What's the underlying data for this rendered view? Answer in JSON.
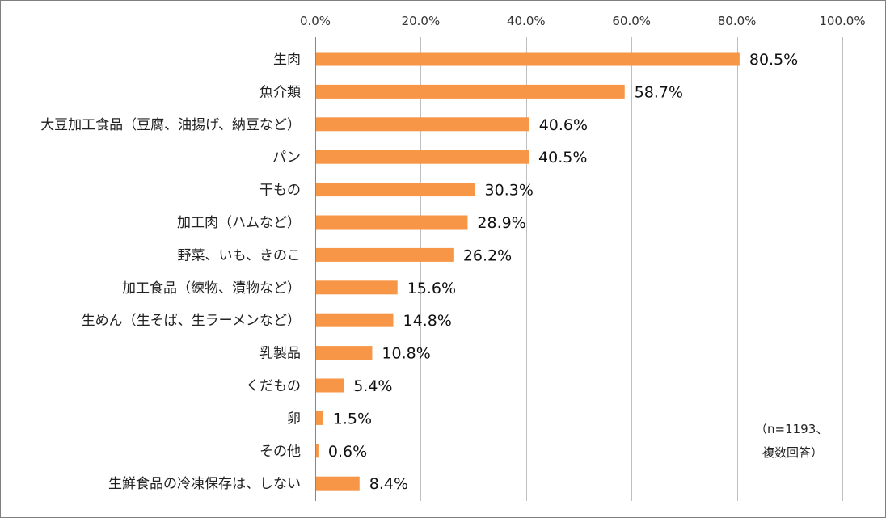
{
  "chart_data": {
    "type": "bar",
    "orientation": "horizontal",
    "categories": [
      "生肉",
      "魚介類",
      "大豆加工食品（豆腐、油揚げ、納豆など）",
      "パン",
      "干もの",
      "加工肉（ハムなど）",
      "野菜、いも、きのこ",
      "加工食品（練物、漬物など）",
      "生めん（生そば、生ラーメンなど）",
      "乳製品",
      "くだもの",
      "卵",
      "その他",
      "生鮮食品の冷凍保存は、しない"
    ],
    "values": [
      80.5,
      58.7,
      40.6,
      40.5,
      30.3,
      28.9,
      26.2,
      15.6,
      14.8,
      10.8,
      5.4,
      1.5,
      0.6,
      8.4
    ],
    "data_labels": [
      "80.5%",
      "58.7%",
      "40.6%",
      "40.5%",
      "30.3%",
      "28.9%",
      "26.2%",
      "15.6%",
      "14.8%",
      "10.8%",
      "5.4%",
      "1.5%",
      "0.6%",
      "8.4%"
    ],
    "xlim": [
      0,
      100
    ],
    "x_ticks": [
      0,
      20,
      40,
      60,
      80,
      100
    ],
    "x_tick_labels": [
      "0.0%",
      "20.0%",
      "40.0%",
      "60.0%",
      "80.0%",
      "100.0%"
    ],
    "axis_position": "top",
    "grid": true,
    "legend": "none",
    "bar_color": "#f79646",
    "grid_color": "#bfbfbf",
    "note_lines": [
      "（n=1193、",
      "複数回答）"
    ]
  }
}
